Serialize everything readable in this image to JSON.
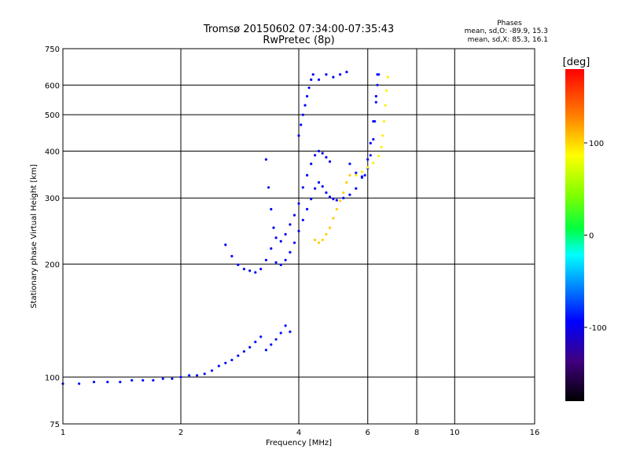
{
  "chart_data": {
    "type": "scatter",
    "title": "Tromsø 20150602 07:34:00-07:35:43",
    "subtitle": "RwPretec (8p)",
    "xlabel": "Frequency [MHz]",
    "ylabel": "Stationary phase Virtual Height [km]",
    "x_scale": "log",
    "y_scale": "log",
    "xlim": [
      1,
      16
    ],
    "ylim": [
      75,
      750
    ],
    "grid": true,
    "x_ticks": [
      {
        "value": 1,
        "label": "1"
      },
      {
        "value": 2,
        "label": "2"
      },
      {
        "value": 4,
        "label": "4"
      },
      {
        "value": 6,
        "label": "6"
      },
      {
        "value": 8,
        "label": "8"
      },
      {
        "value": 10,
        "label": "10"
      },
      {
        "value": 16,
        "label": "16"
      }
    ],
    "y_ticks": [
      {
        "value": 75,
        "label": "75"
      },
      {
        "value": 100,
        "label": "100"
      },
      {
        "value": 200,
        "label": "200"
      },
      {
        "value": 300,
        "label": "300"
      },
      {
        "value": 400,
        "label": "400"
      },
      {
        "value": 500,
        "label": "500"
      },
      {
        "value": 600,
        "label": "600"
      },
      {
        "value": 750,
        "label": "750"
      }
    ],
    "phase_info": {
      "header": "Phases",
      "line_o": "mean, sd,O: -89.9, 15.3",
      "line_x": "mean, sd,X: 85.3, 16.1"
    },
    "colorbar": {
      "label": "[deg]",
      "range": [
        -180,
        180
      ],
      "ticks": [
        {
          "value": 100,
          "label": "100"
        },
        {
          "value": 0,
          "label": "0"
        },
        {
          "value": -100,
          "label": "-100"
        }
      ]
    },
    "traces": [
      {
        "name": "",
        "phase": -95,
        "points": [
          [
            1.0,
            96
          ],
          [
            1.1,
            96
          ],
          [
            1.2,
            97
          ],
          [
            1.3,
            97
          ],
          [
            1.4,
            97
          ],
          [
            1.5,
            98
          ],
          [
            1.6,
            98
          ],
          [
            1.7,
            98
          ],
          [
            1.8,
            99
          ],
          [
            1.9,
            99
          ],
          [
            2.0,
            100
          ],
          [
            2.1,
            101
          ],
          [
            2.2,
            101
          ],
          [
            2.3,
            102
          ],
          [
            2.4,
            104
          ],
          [
            2.5,
            107
          ],
          [
            2.6,
            109
          ],
          [
            2.7,
            111
          ],
          [
            2.8,
            114
          ],
          [
            2.9,
            117
          ],
          [
            3.0,
            120
          ],
          [
            3.1,
            124
          ],
          [
            3.2,
            128
          ],
          [
            3.3,
            118
          ],
          [
            3.4,
            122
          ],
          [
            3.5,
            126
          ],
          [
            3.6,
            131
          ],
          [
            3.7,
            137
          ],
          [
            3.8,
            132
          ]
        ]
      },
      {
        "name": "",
        "phase": -100,
        "points": [
          [
            2.6,
            225
          ],
          [
            2.7,
            210
          ],
          [
            2.8,
            199
          ],
          [
            2.9,
            194
          ],
          [
            3.0,
            192
          ],
          [
            3.1,
            190
          ],
          [
            3.2,
            194
          ],
          [
            3.3,
            205
          ],
          [
            3.4,
            220
          ],
          [
            3.5,
            202
          ],
          [
            3.6,
            199
          ],
          [
            3.7,
            205
          ],
          [
            3.8,
            215
          ],
          [
            3.9,
            228
          ],
          [
            4.0,
            245
          ],
          [
            4.1,
            262
          ],
          [
            4.2,
            280
          ],
          [
            4.3,
            298
          ],
          [
            4.4,
            318
          ],
          [
            4.5,
            330
          ],
          [
            4.6,
            322
          ],
          [
            4.7,
            310
          ],
          [
            4.8,
            302
          ],
          [
            4.9,
            298
          ],
          [
            5.0,
            296
          ],
          [
            5.2,
            300
          ],
          [
            5.4,
            306
          ],
          [
            5.6,
            318
          ],
          [
            5.8,
            342
          ],
          [
            6.0,
            380
          ],
          [
            6.1,
            420
          ],
          [
            6.2,
            480
          ],
          [
            6.3,
            560
          ],
          [
            6.35,
            640
          ]
        ]
      },
      {
        "name": "",
        "phase": -105,
        "points": [
          [
            3.3,
            380
          ],
          [
            3.35,
            320
          ],
          [
            3.4,
            280
          ],
          [
            3.45,
            250
          ],
          [
            3.5,
            235
          ],
          [
            3.6,
            230
          ],
          [
            3.7,
            240
          ],
          [
            3.8,
            255
          ],
          [
            3.9,
            270
          ],
          [
            4.0,
            290
          ],
          [
            4.1,
            320
          ],
          [
            4.2,
            345
          ],
          [
            4.3,
            370
          ],
          [
            4.4,
            390
          ],
          [
            4.5,
            400
          ],
          [
            4.6,
            395
          ],
          [
            4.7,
            385
          ],
          [
            4.8,
            375
          ]
        ]
      },
      {
        "name": "",
        "phase": -100,
        "points": [
          [
            4.0,
            440
          ],
          [
            4.05,
            470
          ],
          [
            4.1,
            500
          ],
          [
            4.15,
            530
          ],
          [
            4.2,
            560
          ],
          [
            4.25,
            590
          ],
          [
            4.3,
            620
          ],
          [
            4.35,
            640
          ],
          [
            4.5,
            620
          ],
          [
            4.7,
            640
          ],
          [
            4.9,
            630
          ],
          [
            5.1,
            640
          ],
          [
            5.3,
            650
          ]
        ]
      },
      {
        "name": "",
        "phase": -95,
        "points": [
          [
            5.4,
            370
          ],
          [
            5.6,
            350
          ],
          [
            5.8,
            340
          ],
          [
            5.9,
            345
          ],
          [
            6.0,
            360
          ],
          [
            6.1,
            390
          ],
          [
            6.2,
            430
          ],
          [
            6.25,
            480
          ],
          [
            6.3,
            540
          ],
          [
            6.35,
            600
          ],
          [
            6.4,
            640
          ]
        ]
      },
      {
        "name": "",
        "phase": 105,
        "points": [
          [
            4.4,
            232
          ],
          [
            4.5,
            228
          ],
          [
            4.6,
            232
          ],
          [
            4.7,
            240
          ],
          [
            4.8,
            250
          ],
          [
            4.9,
            265
          ],
          [
            5.0,
            280
          ],
          [
            5.1,
            295
          ],
          [
            5.2,
            310
          ],
          [
            5.3,
            330
          ],
          [
            5.4,
            345
          ]
        ]
      },
      {
        "name": "",
        "phase": 95,
        "points": [
          [
            5.6,
            345
          ],
          [
            5.8,
            352
          ],
          [
            6.0,
            362
          ],
          [
            6.2,
            372
          ],
          [
            6.4,
            388
          ],
          [
            6.5,
            410
          ],
          [
            6.55,
            440
          ],
          [
            6.6,
            480
          ],
          [
            6.65,
            530
          ],
          [
            6.7,
            580
          ],
          [
            6.75,
            630
          ]
        ]
      }
    ]
  }
}
